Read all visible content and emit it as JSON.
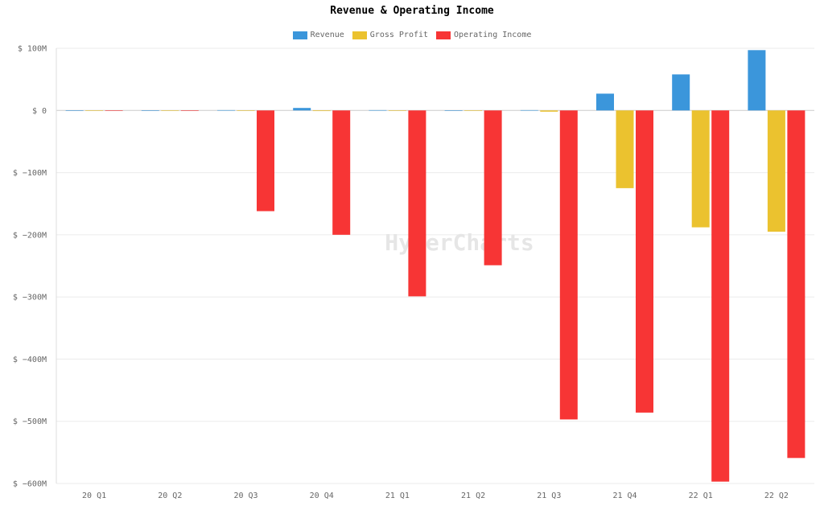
{
  "watermark": "HyperCharts",
  "chart_data": {
    "type": "bar",
    "title": "Revenue & Operating Income",
    "xlabel": "",
    "ylabel": "",
    "categories": [
      "20 Q1",
      "20 Q2",
      "20 Q3",
      "20 Q4",
      "21 Q1",
      "21 Q2",
      "21 Q3",
      "21 Q4",
      "22 Q1",
      "22 Q2"
    ],
    "ylim": [
      -600,
      100
    ],
    "yticks": [
      100,
      0,
      -100,
      -200,
      -300,
      -400,
      -500,
      -600
    ],
    "ytick_labels": [
      "$ 100M",
      "$ 0",
      "$ −100M",
      "$ −200M",
      "$ −300M",
      "$ −400M",
      "$ −500M",
      "$ −600M"
    ],
    "grid": true,
    "legend_position": "top-center",
    "series": [
      {
        "name": "Revenue",
        "color": "#3b96db",
        "values": [
          0,
          0,
          0.5,
          4,
          0.5,
          0,
          0.5,
          27,
          58,
          97
        ]
      },
      {
        "name": "Gross Profit",
        "color": "#ebc22f",
        "values": [
          0,
          0,
          0,
          -1,
          0,
          0,
          -2,
          -125,
          -188,
          -195
        ]
      },
      {
        "name": "Operating Income",
        "color": "#f73535",
        "values": [
          0,
          0,
          -162,
          -200,
          -299,
          -249,
          -497,
          -486,
          -597,
          -559
        ]
      }
    ]
  }
}
